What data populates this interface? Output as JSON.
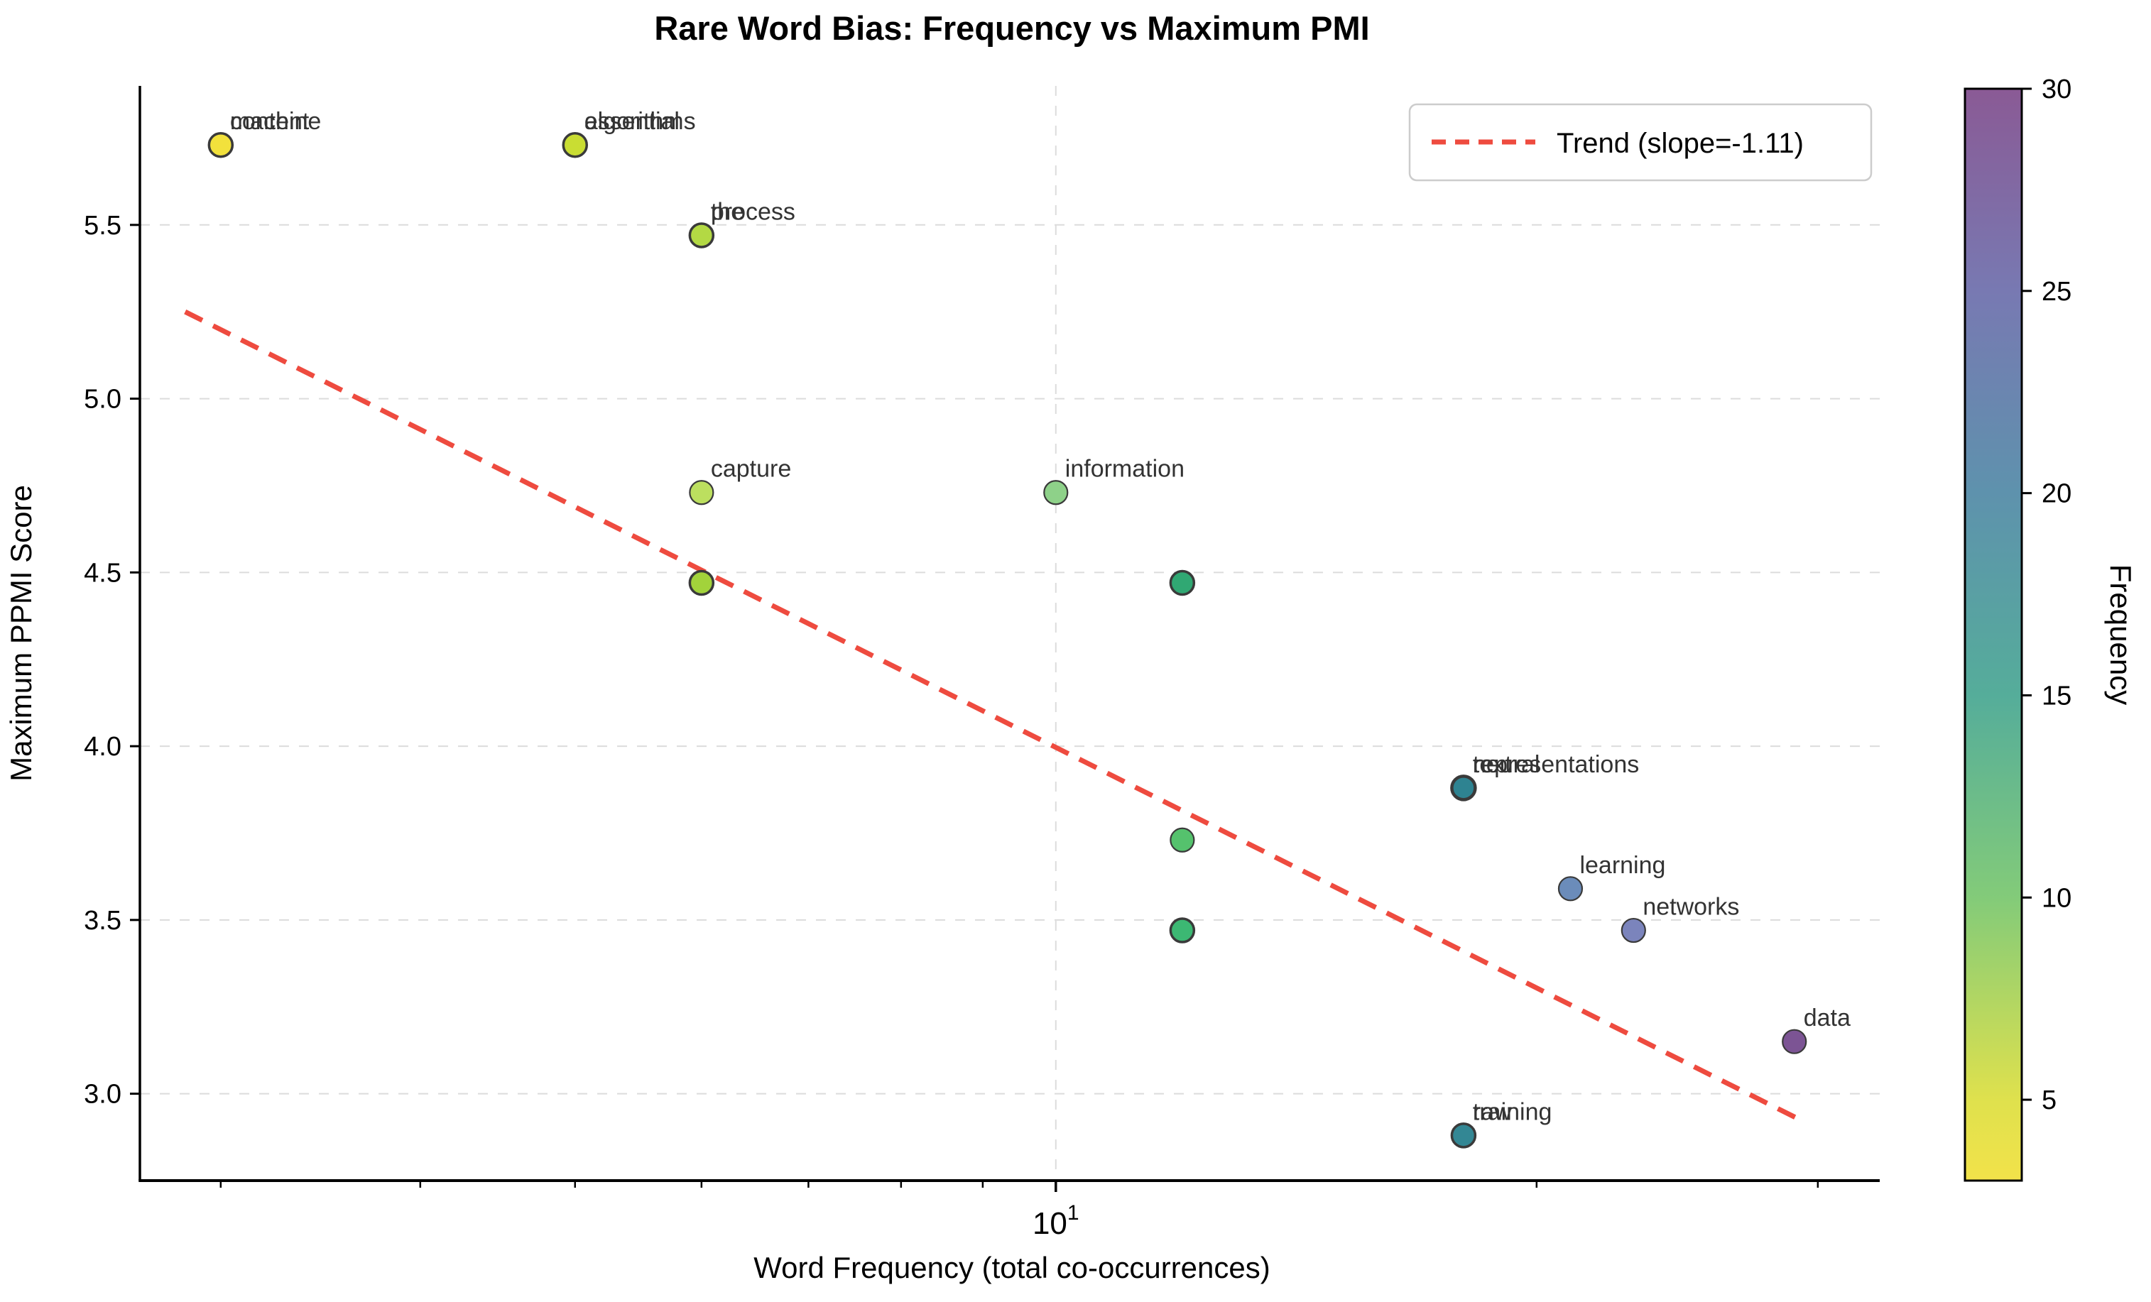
{
  "title": "Rare Word Bias: Frequency vs Maximum PMI",
  "chart_data": {
    "type": "scatter",
    "title": "Rare Word Bias: Frequency vs Maximum PMI",
    "xlabel": "Word Frequency (total co-occurrences)",
    "ylabel": "Maximum PPMI Score",
    "x_scale": "log10",
    "xlim": [
      2.67,
      32.8
    ],
    "ylim": [
      2.75,
      5.9
    ],
    "grid": true,
    "x_major_tick": {
      "value": 10,
      "base": "10",
      "exponent": "1"
    },
    "x_minor_ticks": [
      3,
      4,
      5,
      6,
      7,
      8,
      9,
      20,
      30
    ],
    "y_ticks": [
      {
        "value": 3.0,
        "label": "3.0"
      },
      {
        "value": 3.5,
        "label": "3.5"
      },
      {
        "value": 4.0,
        "label": "4.0"
      },
      {
        "value": 4.5,
        "label": "4.5"
      },
      {
        "value": 5.0,
        "label": "5.0"
      },
      {
        "value": 5.5,
        "label": "5.5"
      }
    ],
    "points": [
      {
        "labels": [
          "machine",
          "content"
        ],
        "freq": 3,
        "pmi": 5.73,
        "color": "#f2e13c",
        "overlap": 2
      },
      {
        "labels": [
          "algorithms",
          "essential"
        ],
        "freq": 5,
        "pmi": 5.73,
        "color": "#c9dd33",
        "overlap": 2
      },
      {
        "labels": [
          "the",
          "process"
        ],
        "freq": 6,
        "pmi": 5.47,
        "color": "#b3d944",
        "overlap": 2
      },
      {
        "labels": [
          "capture"
        ],
        "freq": 6,
        "pmi": 4.73,
        "color": "#bcdf5f",
        "overlap": 1
      },
      {
        "labels": [],
        "freq": 6,
        "pmi": 4.47,
        "color": "#a2d33b",
        "overlap": 2
      },
      {
        "labels": [
          "information"
        ],
        "freq": 10,
        "pmi": 4.73,
        "color": "#8ed189",
        "overlap": 1
      },
      {
        "labels": [],
        "freq": 12,
        "pmi": 4.47,
        "color": "#30a873",
        "overlap": 2
      },
      {
        "labels": [],
        "freq": 12,
        "pmi": 3.73,
        "color": "#55c26d",
        "overlap": 1
      },
      {
        "labels": [],
        "freq": 12,
        "pmi": 3.47,
        "color": "#3cb873",
        "overlap": 2
      },
      {
        "labels": [
          "neural",
          "text",
          "representations"
        ],
        "freq": 18,
        "pmi": 3.88,
        "color": "#2e8391",
        "overlap": 3
      },
      {
        "labels": [
          "learning"
        ],
        "freq": 21,
        "pmi": 3.59,
        "color": "#6b8cba",
        "overlap": 1
      },
      {
        "labels": [
          "networks"
        ],
        "freq": 23,
        "pmi": 3.47,
        "color": "#7b84bc",
        "overlap": 1
      },
      {
        "labels": [
          "data"
        ],
        "freq": 29,
        "pmi": 3.15,
        "color": "#7c5494",
        "overlap": 1
      },
      {
        "labels": [
          "raw",
          "training"
        ],
        "freq": 18,
        "pmi": 2.88,
        "color": "#338794",
        "overlap": 2
      }
    ],
    "trend": {
      "label": "Trend (slope=-1.11)",
      "color": "#ee4b3f",
      "x1": 2.85,
      "y1": 5.25,
      "x2": 29.1,
      "y2": 2.93
    },
    "legend_position": "upper-right",
    "colorbar": {
      "label": "Frequency",
      "vmin": 3,
      "vmax": 30,
      "ticks": [
        5,
        10,
        15,
        20,
        25,
        30
      ],
      "gradient_top_to_bottom": [
        {
          "value": 30,
          "color": "#8a5a95"
        },
        {
          "value": 25,
          "color": "#7879b2"
        },
        {
          "value": 20,
          "color": "#5e92ad"
        },
        {
          "value": 15,
          "color": "#55ad9a"
        },
        {
          "value": 10,
          "color": "#83cb79"
        },
        {
          "value": 5,
          "color": "#dfe14d"
        },
        {
          "value": 3,
          "color": "#f2e24a"
        }
      ]
    },
    "colors": {
      "grid": "#dcdcdc",
      "spine": "#000000",
      "point_edge": "#3a3a3a",
      "point_label": "#333333",
      "legend_border": "#cccccc",
      "trend_red": "#ee4b3f"
    }
  }
}
